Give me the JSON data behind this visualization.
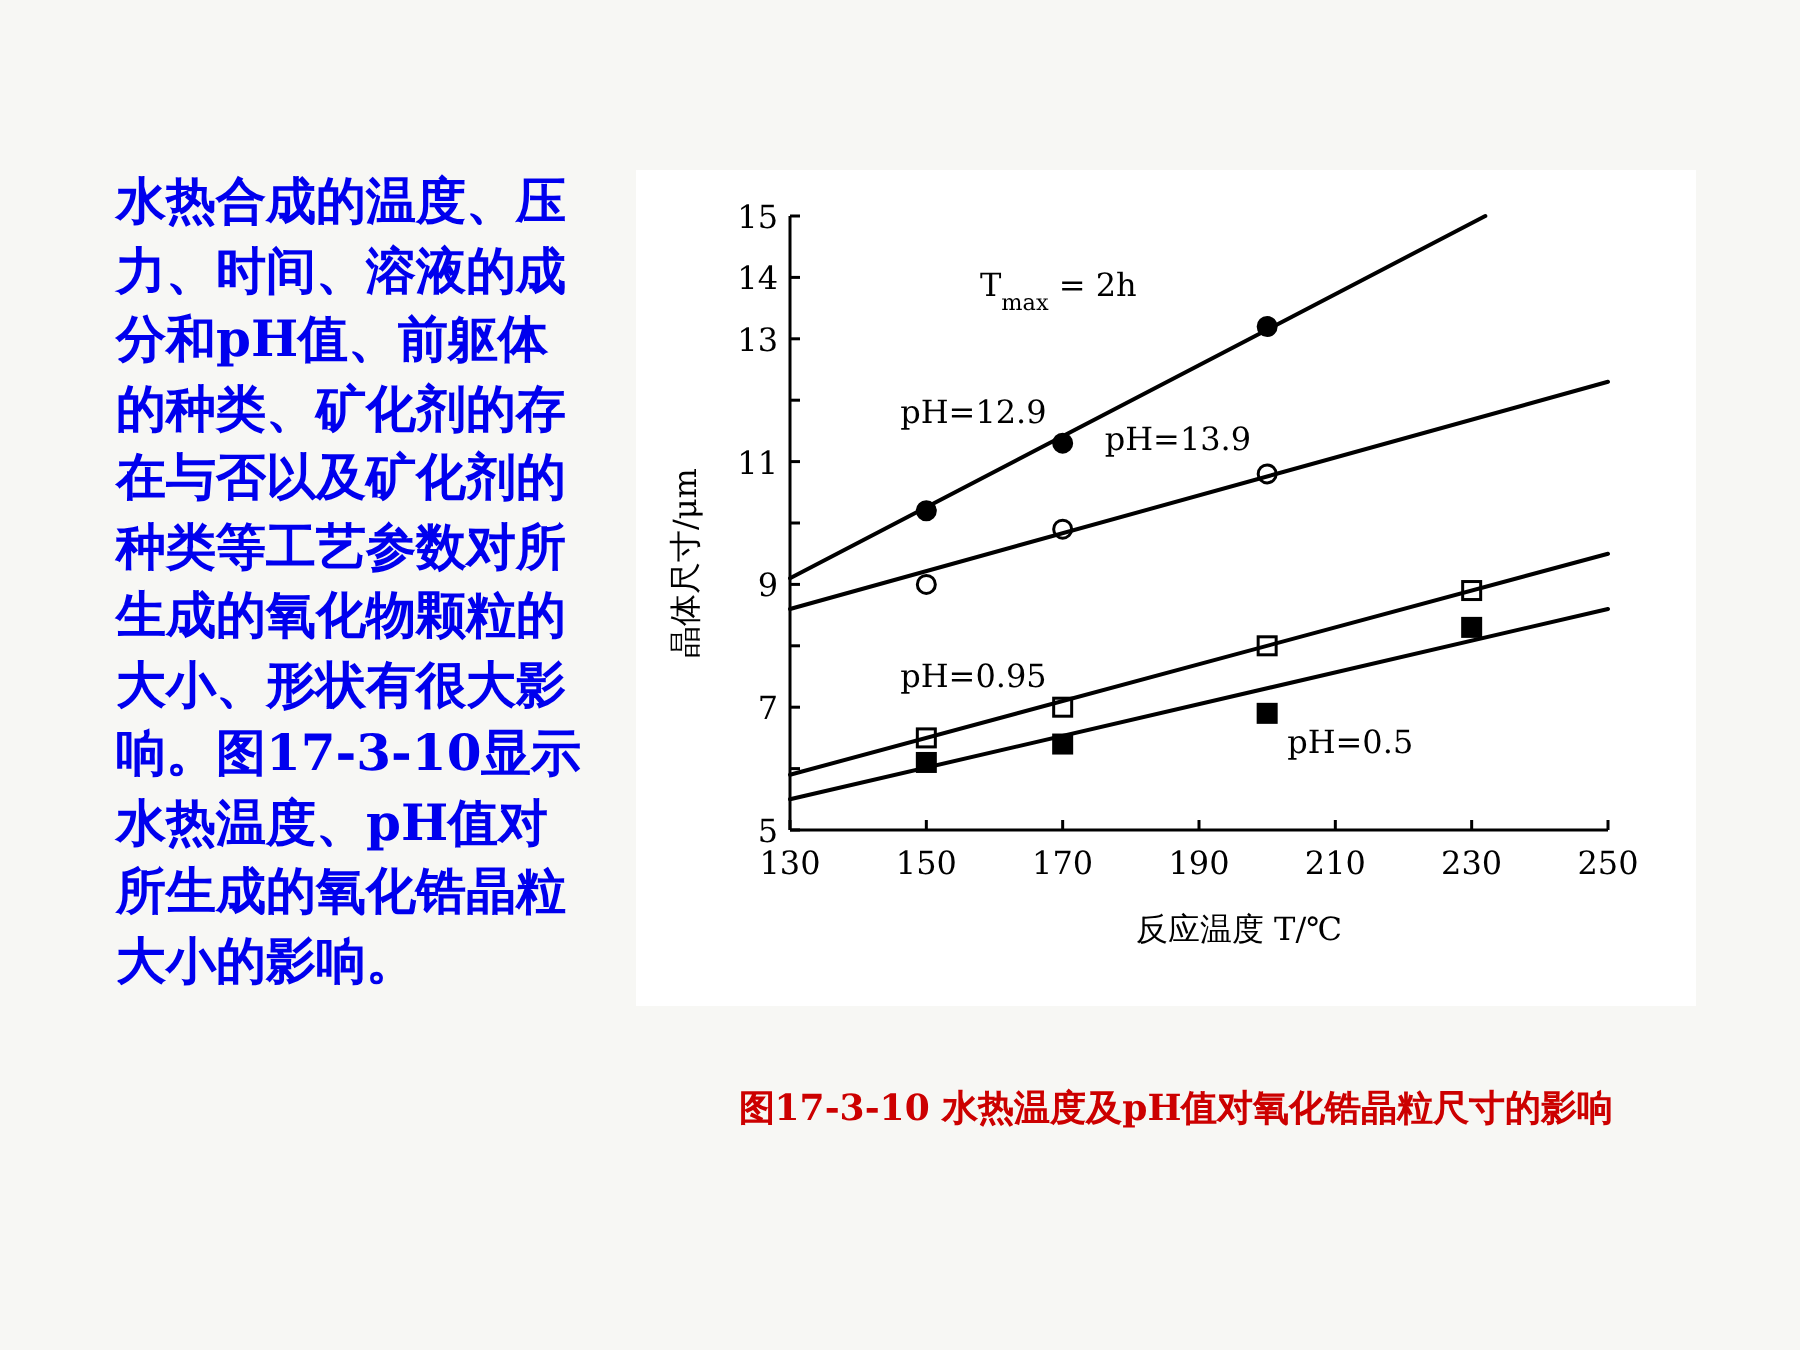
{
  "chart_data": [
    {
      "type": "other",
      "annotations": [
        "水热合成的温度、压力、时间、溶液的成分和pH值、前躯体的种类、矿化剂的存在与否以及矿化剂的种类等工艺参数对所生成的氧化物颗粒的大小、形状有很大影响。图17-3-10显示水热温度、pH值对所生成的氧化锆晶粒大小的影响。"
      ]
    },
    {
      "type": "line",
      "title": "图17-3-10 水热温度及pH值对氧化锆晶粒尺寸的影响",
      "xlabel": "反应温度 T/℃",
      "ylabel": "晶体尺寸/μm",
      "xlim": [
        130,
        250
      ],
      "xticks": [
        130,
        150,
        170,
        190,
        210,
        230,
        250
      ],
      "ylim": [
        5,
        15
      ],
      "yticks": [
        5,
        {
          "value": 6,
          "label": null
        },
        7,
        {
          "value": 8,
          "label": null
        },
        9,
        {
          "value": 10,
          "label": null
        },
        11,
        {
          "value": 12,
          "label": null
        },
        13,
        14,
        15
      ],
      "grid": false,
      "line_style": "solid",
      "series": [
        {
          "type": "scatter",
          "name": "pH=12.9",
          "marker": "circle",
          "color": "#000000",
          "x": [
            150,
            170,
            200
          ],
          "values": [
            10.2,
            11.3,
            13.2
          ]
        },
        {
          "type": "line",
          "color": "#000000",
          "x": [
            130,
            232
          ],
          "values": [
            9.1,
            15
          ]
        },
        {
          "type": "scatter",
          "name": "pH=13.9",
          "marker": "circle",
          "color": "#ffffff",
          "x": [
            150,
            170,
            200
          ],
          "values": [
            9.0,
            9.9,
            10.8
          ]
        },
        {
          "type": "line",
          "color": "#000000",
          "x": [
            130,
            250
          ],
          "values": [
            8.6,
            12.3
          ]
        },
        {
          "type": "scatter",
          "name": "pH=0.95",
          "marker": "square",
          "color": "#ffffff",
          "x": [
            150,
            170,
            200,
            230
          ],
          "values": [
            6.5,
            7.0,
            8.0,
            8.9
          ]
        },
        {
          "type": "line",
          "color": "#000000",
          "x": [
            130,
            250
          ],
          "values": [
            5.9,
            9.5
          ]
        },
        {
          "type": "scatter",
          "name": "pH=0.5",
          "marker": "square",
          "color": "#000000",
          "x": [
            150,
            170,
            200,
            230
          ],
          "values": [
            6.1,
            6.4,
            6.9,
            8.3
          ]
        },
        {
          "type": "line",
          "color": "#000000",
          "x": [
            130,
            250
          ],
          "values": [
            5.5,
            8.6
          ]
        }
      ],
      "annotations": [
        "T$_{max}$ = 2h"
      ]
    }
  ]
}
